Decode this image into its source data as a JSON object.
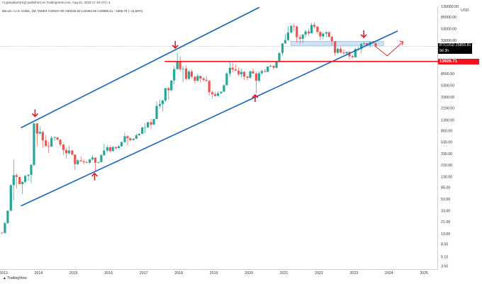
{
  "header": {
    "publisher": "Cryptoadam(HQ) published on TradingView.com, Aug 22, 2023 17:16 UTC-4",
    "symbol_line": "Bitcoin / U.S. Dollar, 1M, INDEX  O29237.80  H30226.50  L25363.66  C25855.81  −3386.76 (−11.58%)"
  },
  "chart_data": {
    "type": "candlestick",
    "title": "Bitcoin / U.S. Dollar, 1M, INDEX",
    "price_scale": "logarithmic",
    "currency": "USD",
    "ylim": [
      3,
      130000
    ],
    "xlim": [
      2012.9,
      2025.4
    ],
    "y_ticks": [
      3.5,
      5.1,
      8.5,
      13.0,
      21.0,
      33.0,
      53.0,
      85.0,
      130.0,
      210.0,
      330.0,
      530.0,
      850.0,
      1300.0,
      2100.0,
      3300.0,
      5300.0,
      8500.0,
      13000.0,
      21000.0,
      33000.0,
      53000.0,
      85000.0,
      130000.0
    ],
    "y_tick_labels": [
      "3.50",
      "5.10",
      "8.50",
      "13.00",
      "21.00",
      "33.00",
      "53.00",
      "85.00",
      "130.00",
      "210.00",
      "330.00",
      "530.00",
      "850.00",
      "1300.00",
      "2100.00",
      "3300.00",
      "5300.00",
      "8500.00",
      "13000.00",
      "21000.00",
      "33000.00",
      "53000.00",
      "85000.00",
      "130000.00"
    ],
    "x_ticks": [
      2013,
      2014,
      2015,
      2016,
      2017,
      2018,
      2019,
      2020,
      2021,
      2022,
      2023,
      2024,
      2025
    ],
    "x_tick_labels": [
      "2013",
      "2014",
      "2015",
      "2016",
      "2017",
      "2018",
      "2019",
      "2020",
      "2021",
      "2022",
      "2023",
      "2024",
      "2025"
    ],
    "last_price": {
      "symbol": "BTCUSD",
      "value": "25855.81",
      "countdown": "9d 3h",
      "y": 25855.81
    },
    "support_line": {
      "label": "13926.71",
      "y": 13926.71,
      "color": "#f0141e"
    },
    "channel_lines": [
      {
        "name": "upper-channel",
        "from": [
          2013.5,
          950
        ],
        "to": [
          2020.3,
          125000
        ]
      },
      {
        "name": "lower-channel",
        "from": [
          2013.5,
          40
        ],
        "to": [
          2024.25,
          48000
        ]
      }
    ],
    "resistance_zone": {
      "x0": 2021.2,
      "x1": 2023.85,
      "y0": 26500,
      "y1": 31500
    },
    "projection_path": [
      [
        2023.6,
        26000
      ],
      [
        2023.95,
        17500
      ],
      [
        2024.4,
        31000
      ]
    ],
    "arrows": [
      {
        "name": "down-arrow-2013",
        "x": 2013.9,
        "y": 1500,
        "dir": "down"
      },
      {
        "name": "up-arrow-2015",
        "x": 2015.6,
        "y": 150,
        "dir": "up"
      },
      {
        "name": "down-arrow-2017",
        "x": 2017.9,
        "y": 24000,
        "dir": "down"
      },
      {
        "name": "up-arrow-2020",
        "x": 2020.18,
        "y": 3600,
        "dir": "up"
      },
      {
        "name": "down-arrow-2023",
        "x": 2023.28,
        "y": 37000,
        "dir": "down"
      }
    ],
    "up_color": "#26a69a",
    "down_color": "#ef5350",
    "candles": [
      {
        "t": 2012.96,
        "o": 13.5,
        "h": 14.0,
        "l": 12.8,
        "c": 13.4
      },
      {
        "t": 2013.04,
        "o": 13.4,
        "h": 21.0,
        "l": 13.0,
        "c": 20.0
      },
      {
        "t": 2013.12,
        "o": 20.0,
        "h": 33.0,
        "l": 19.0,
        "c": 33.0
      },
      {
        "t": 2013.21,
        "o": 33.0,
        "h": 95.0,
        "l": 32.0,
        "c": 93.0
      },
      {
        "t": 2013.29,
        "o": 93.0,
        "h": 260.0,
        "l": 50.0,
        "c": 139.0
      },
      {
        "t": 2013.37,
        "o": 139.0,
        "h": 150.0,
        "l": 80.0,
        "c": 129.0
      },
      {
        "t": 2013.46,
        "o": 129.0,
        "h": 130.0,
        "l": 100.0,
        "c": 97.0
      },
      {
        "t": 2013.54,
        "o": 97.0,
        "h": 110.0,
        "l": 65.0,
        "c": 106.0
      },
      {
        "t": 2013.62,
        "o": 106.0,
        "h": 140.0,
        "l": 100.0,
        "c": 135.0
      },
      {
        "t": 2013.71,
        "o": 135.0,
        "h": 145.0,
        "l": 110.0,
        "c": 141.0
      },
      {
        "t": 2013.79,
        "o": 141.0,
        "h": 220.0,
        "l": 100.0,
        "c": 211.0
      },
      {
        "t": 2013.87,
        "o": 211.0,
        "h": 1160.0,
        "l": 200.0,
        "c": 1130.0
      },
      {
        "t": 2013.96,
        "o": 1130.0,
        "h": 1150.0,
        "l": 450.0,
        "c": 750.0
      },
      {
        "t": 2014.04,
        "o": 750.0,
        "h": 1000.0,
        "l": 740.0,
        "c": 800.0
      },
      {
        "t": 2014.12,
        "o": 800.0,
        "h": 840.0,
        "l": 420.0,
        "c": 570.0
      },
      {
        "t": 2014.21,
        "o": 570.0,
        "h": 700.0,
        "l": 450.0,
        "c": 450.0
      },
      {
        "t": 2014.29,
        "o": 450.0,
        "h": 550.0,
        "l": 340.0,
        "c": 445.0
      },
      {
        "t": 2014.37,
        "o": 445.0,
        "h": 680.0,
        "l": 430.0,
        "c": 630.0
      },
      {
        "t": 2014.46,
        "o": 630.0,
        "h": 680.0,
        "l": 555.0,
        "c": 640.0
      },
      {
        "t": 2014.54,
        "o": 640.0,
        "h": 650.0,
        "l": 580.0,
        "c": 585.0
      },
      {
        "t": 2014.62,
        "o": 585.0,
        "h": 600.0,
        "l": 440.0,
        "c": 480.0
      },
      {
        "t": 2014.71,
        "o": 480.0,
        "h": 500.0,
        "l": 320.0,
        "c": 385.0
      },
      {
        "t": 2014.79,
        "o": 385.0,
        "h": 420.0,
        "l": 275.0,
        "c": 338.0
      },
      {
        "t": 2014.87,
        "o": 338.0,
        "h": 460.0,
        "l": 320.0,
        "c": 378.0
      },
      {
        "t": 2014.96,
        "o": 378.0,
        "h": 385.0,
        "l": 310.0,
        "c": 320.0
      },
      {
        "t": 2015.04,
        "o": 320.0,
        "h": 320.0,
        "l": 170.0,
        "c": 217.0
      },
      {
        "t": 2015.12,
        "o": 217.0,
        "h": 265.0,
        "l": 210.0,
        "c": 254.0
      },
      {
        "t": 2015.21,
        "o": 254.0,
        "h": 300.0,
        "l": 240.0,
        "c": 244.0
      },
      {
        "t": 2015.29,
        "o": 244.0,
        "h": 260.0,
        "l": 215.0,
        "c": 236.0
      },
      {
        "t": 2015.37,
        "o": 236.0,
        "h": 250.0,
        "l": 225.0,
        "c": 230.0
      },
      {
        "t": 2015.46,
        "o": 230.0,
        "h": 270.0,
        "l": 220.0,
        "c": 263.0
      },
      {
        "t": 2015.54,
        "o": 263.0,
        "h": 315.0,
        "l": 253.0,
        "c": 284.0
      },
      {
        "t": 2015.62,
        "o": 284.0,
        "h": 285.0,
        "l": 162.0,
        "c": 230.0
      },
      {
        "t": 2015.71,
        "o": 230.0,
        "h": 245.0,
        "l": 225.0,
        "c": 236.0
      },
      {
        "t": 2015.79,
        "o": 236.0,
        "h": 330.0,
        "l": 236.0,
        "c": 314.0
      },
      {
        "t": 2015.87,
        "o": 314.0,
        "h": 500.0,
        "l": 300.0,
        "c": 377.0
      },
      {
        "t": 2015.96,
        "o": 377.0,
        "h": 470.0,
        "l": 350.0,
        "c": 430.0
      },
      {
        "t": 2016.04,
        "o": 430.0,
        "h": 460.0,
        "l": 350.0,
        "c": 368.0
      },
      {
        "t": 2016.12,
        "o": 368.0,
        "h": 450.0,
        "l": 365.0,
        "c": 437.0
      },
      {
        "t": 2016.21,
        "o": 437.0,
        "h": 440.0,
        "l": 400.0,
        "c": 416.0
      },
      {
        "t": 2016.29,
        "o": 416.0,
        "h": 470.0,
        "l": 410.0,
        "c": 448.0
      },
      {
        "t": 2016.37,
        "o": 448.0,
        "h": 550.0,
        "l": 440.0,
        "c": 531.0
      },
      {
        "t": 2016.46,
        "o": 531.0,
        "h": 780.0,
        "l": 520.0,
        "c": 673.0
      },
      {
        "t": 2016.54,
        "o": 673.0,
        "h": 700.0,
        "l": 470.0,
        "c": 624.0
      },
      {
        "t": 2016.62,
        "o": 624.0,
        "h": 630.0,
        "l": 540.0,
        "c": 575.0
      },
      {
        "t": 2016.71,
        "o": 575.0,
        "h": 620.0,
        "l": 570.0,
        "c": 609.0
      },
      {
        "t": 2016.79,
        "o": 609.0,
        "h": 740.0,
        "l": 605.0,
        "c": 700.0
      },
      {
        "t": 2016.87,
        "o": 700.0,
        "h": 760.0,
        "l": 690.0,
        "c": 742.0
      },
      {
        "t": 2016.96,
        "o": 742.0,
        "h": 980.0,
        "l": 740.0,
        "c": 963.0
      },
      {
        "t": 2017.04,
        "o": 963.0,
        "h": 1150.0,
        "l": 750.0,
        "c": 965.0
      },
      {
        "t": 2017.12,
        "o": 965.0,
        "h": 1200.0,
        "l": 940.0,
        "c": 1190.0
      },
      {
        "t": 2017.21,
        "o": 1190.0,
        "h": 1350.0,
        "l": 900.0,
        "c": 1080.0
      },
      {
        "t": 2017.29,
        "o": 1080.0,
        "h": 1350.0,
        "l": 1060.0,
        "c": 1350.0
      },
      {
        "t": 2017.37,
        "o": 1350.0,
        "h": 2750.0,
        "l": 1340.0,
        "c": 2300.0
      },
      {
        "t": 2017.46,
        "o": 2300.0,
        "h": 3000.0,
        "l": 2100.0,
        "c": 2480.0
      },
      {
        "t": 2017.54,
        "o": 2480.0,
        "h": 2950.0,
        "l": 1830.0,
        "c": 2870.0
      },
      {
        "t": 2017.62,
        "o": 2870.0,
        "h": 4750.0,
        "l": 2670.0,
        "c": 4730.0
      },
      {
        "t": 2017.71,
        "o": 4730.0,
        "h": 4980.0,
        "l": 2950.0,
        "c": 4340.0
      },
      {
        "t": 2017.79,
        "o": 4340.0,
        "h": 6470.0,
        "l": 4110.0,
        "c": 6470.0
      },
      {
        "t": 2017.87,
        "o": 6470.0,
        "h": 11500.0,
        "l": 5500.0,
        "c": 10200.0
      },
      {
        "t": 2017.96,
        "o": 10200.0,
        "h": 19800.0,
        "l": 10000.0,
        "c": 14150.0
      },
      {
        "t": 2018.04,
        "o": 14150.0,
        "h": 17200.0,
        "l": 9400.0,
        "c": 10200.0
      },
      {
        "t": 2018.12,
        "o": 10200.0,
        "h": 11800.0,
        "l": 6000.0,
        "c": 10400.0
      },
      {
        "t": 2018.21,
        "o": 10400.0,
        "h": 11700.0,
        "l": 6500.0,
        "c": 6900.0
      },
      {
        "t": 2018.29,
        "o": 6900.0,
        "h": 9800.0,
        "l": 6500.0,
        "c": 9250.0
      },
      {
        "t": 2018.37,
        "o": 9250.0,
        "h": 9950.0,
        "l": 7050.0,
        "c": 7500.0
      },
      {
        "t": 2018.46,
        "o": 7500.0,
        "h": 7800.0,
        "l": 5750.0,
        "c": 6400.0
      },
      {
        "t": 2018.54,
        "o": 6400.0,
        "h": 8500.0,
        "l": 6100.0,
        "c": 7750.0
      },
      {
        "t": 2018.62,
        "o": 7750.0,
        "h": 7800.0,
        "l": 5900.0,
        "c": 7000.0
      },
      {
        "t": 2018.71,
        "o": 7000.0,
        "h": 7400.0,
        "l": 6200.0,
        "c": 6600.0
      },
      {
        "t": 2018.79,
        "o": 6600.0,
        "h": 7700.0,
        "l": 6200.0,
        "c": 6350.0
      },
      {
        "t": 2018.87,
        "o": 6350.0,
        "h": 6600.0,
        "l": 3500.0,
        "c": 4000.0
      },
      {
        "t": 2018.96,
        "o": 4000.0,
        "h": 4300.0,
        "l": 3150.0,
        "c": 3700.0
      },
      {
        "t": 2019.04,
        "o": 3700.0,
        "h": 4100.0,
        "l": 3350.0,
        "c": 3450.0
      },
      {
        "t": 2019.12,
        "o": 3450.0,
        "h": 4200.0,
        "l": 3350.0,
        "c": 3850.0
      },
      {
        "t": 2019.21,
        "o": 3850.0,
        "h": 4100.0,
        "l": 3700.0,
        "c": 4100.0
      },
      {
        "t": 2019.29,
        "o": 4100.0,
        "h": 5600.0,
        "l": 4050.0,
        "c": 5300.0
      },
      {
        "t": 2019.37,
        "o": 5300.0,
        "h": 9100.0,
        "l": 5300.0,
        "c": 8550.0
      },
      {
        "t": 2019.46,
        "o": 8550.0,
        "h": 13900.0,
        "l": 7450.0,
        "c": 10800.0
      },
      {
        "t": 2019.54,
        "o": 10800.0,
        "h": 13200.0,
        "l": 9050.0,
        "c": 10100.0
      },
      {
        "t": 2019.62,
        "o": 10100.0,
        "h": 12300.0,
        "l": 9400.0,
        "c": 9600.0
      },
      {
        "t": 2019.71,
        "o": 9600.0,
        "h": 10900.0,
        "l": 7700.0,
        "c": 8300.0
      },
      {
        "t": 2019.79,
        "o": 8300.0,
        "h": 10400.0,
        "l": 7300.0,
        "c": 9150.0
      },
      {
        "t": 2019.87,
        "o": 9150.0,
        "h": 9350.0,
        "l": 6550.0,
        "c": 7550.0
      },
      {
        "t": 2019.96,
        "o": 7550.0,
        "h": 7750.0,
        "l": 6450.0,
        "c": 7200.0
      },
      {
        "t": 2020.04,
        "o": 7200.0,
        "h": 9600.0,
        "l": 6900.0,
        "c": 9350.0
      },
      {
        "t": 2020.12,
        "o": 9350.0,
        "h": 10500.0,
        "l": 8500.0,
        "c": 8550.0
      },
      {
        "t": 2020.21,
        "o": 8550.0,
        "h": 9200.0,
        "l": 3850.0,
        "c": 6400.0
      },
      {
        "t": 2020.29,
        "o": 6400.0,
        "h": 9450.0,
        "l": 6150.0,
        "c": 8650.0
      },
      {
        "t": 2020.37,
        "o": 8650.0,
        "h": 10050.0,
        "l": 8150.0,
        "c": 9450.0
      },
      {
        "t": 2020.46,
        "o": 9450.0,
        "h": 10400.0,
        "l": 8900.0,
        "c": 9150.0
      },
      {
        "t": 2020.54,
        "o": 9150.0,
        "h": 11450.0,
        "l": 9050.0,
        "c": 11350.0
      },
      {
        "t": 2020.62,
        "o": 11350.0,
        "h": 12500.0,
        "l": 11100.0,
        "c": 11650.0
      },
      {
        "t": 2020.71,
        "o": 11650.0,
        "h": 12050.0,
        "l": 9900.0,
        "c": 10800.0
      },
      {
        "t": 2020.79,
        "o": 10800.0,
        "h": 14000.0,
        "l": 10400.0,
        "c": 13800.0
      },
      {
        "t": 2020.87,
        "o": 13800.0,
        "h": 19900.0,
        "l": 13200.0,
        "c": 19700.0
      },
      {
        "t": 2020.96,
        "o": 19700.0,
        "h": 29300.0,
        "l": 17600.0,
        "c": 29000.0
      },
      {
        "t": 2021.04,
        "o": 29000.0,
        "h": 41900.0,
        "l": 28800.0,
        "c": 33100.0
      },
      {
        "t": 2021.12,
        "o": 33100.0,
        "h": 58300.0,
        "l": 32300.0,
        "c": 45200.0
      },
      {
        "t": 2021.21,
        "o": 45200.0,
        "h": 61800.0,
        "l": 43000.0,
        "c": 58800.0
      },
      {
        "t": 2021.29,
        "o": 58800.0,
        "h": 64800.0,
        "l": 47000.0,
        "c": 57700.0
      },
      {
        "t": 2021.37,
        "o": 57700.0,
        "h": 59500.0,
        "l": 30000.0,
        "c": 37300.0
      },
      {
        "t": 2021.46,
        "o": 37300.0,
        "h": 41300.0,
        "l": 28800.0,
        "c": 35000.0
      },
      {
        "t": 2021.54,
        "o": 35000.0,
        "h": 42400.0,
        "l": 29300.0,
        "c": 41500.0
      },
      {
        "t": 2021.62,
        "o": 41500.0,
        "h": 50500.0,
        "l": 37300.0,
        "c": 47100.0
      },
      {
        "t": 2021.71,
        "o": 47100.0,
        "h": 52900.0,
        "l": 39600.0,
        "c": 43800.0
      },
      {
        "t": 2021.79,
        "o": 43800.0,
        "h": 67000.0,
        "l": 43300.0,
        "c": 61300.0
      },
      {
        "t": 2021.87,
        "o": 61300.0,
        "h": 69000.0,
        "l": 53300.0,
        "c": 57000.0
      },
      {
        "t": 2021.96,
        "o": 57000.0,
        "h": 59100.0,
        "l": 42000.0,
        "c": 46200.0
      },
      {
        "t": 2022.04,
        "o": 46200.0,
        "h": 47900.0,
        "l": 32900.0,
        "c": 38500.0
      },
      {
        "t": 2022.12,
        "o": 38500.0,
        "h": 45800.0,
        "l": 34300.0,
        "c": 43200.0
      },
      {
        "t": 2022.21,
        "o": 43200.0,
        "h": 48200.0,
        "l": 37200.0,
        "c": 45500.0
      },
      {
        "t": 2022.29,
        "o": 45500.0,
        "h": 47400.0,
        "l": 37600.0,
        "c": 37700.0
      },
      {
        "t": 2022.37,
        "o": 37700.0,
        "h": 40000.0,
        "l": 26700.0,
        "c": 31800.0
      },
      {
        "t": 2022.46,
        "o": 31800.0,
        "h": 31900.0,
        "l": 17600.0,
        "c": 19800.0
      },
      {
        "t": 2022.54,
        "o": 19800.0,
        "h": 24600.0,
        "l": 18800.0,
        "c": 23300.0
      },
      {
        "t": 2022.62,
        "o": 23300.0,
        "h": 25200.0,
        "l": 19600.0,
        "c": 20000.0
      },
      {
        "t": 2022.71,
        "o": 20000.0,
        "h": 22800.0,
        "l": 18200.0,
        "c": 19400.0
      },
      {
        "t": 2022.79,
        "o": 19400.0,
        "h": 21000.0,
        "l": 18200.0,
        "c": 20500.0
      },
      {
        "t": 2022.87,
        "o": 20500.0,
        "h": 21400.0,
        "l": 15500.0,
        "c": 17200.0
      },
      {
        "t": 2022.96,
        "o": 17200.0,
        "h": 18400.0,
        "l": 16300.0,
        "c": 16500.0
      },
      {
        "t": 2023.04,
        "o": 16500.0,
        "h": 23900.0,
        "l": 16500.0,
        "c": 23100.0
      },
      {
        "t": 2023.12,
        "o": 23100.0,
        "h": 25200.0,
        "l": 21400.0,
        "c": 23100.0
      },
      {
        "t": 2023.21,
        "o": 23100.0,
        "h": 29200.0,
        "l": 19600.0,
        "c": 28500.0
      },
      {
        "t": 2023.29,
        "o": 28500.0,
        "h": 31000.0,
        "l": 26900.0,
        "c": 29200.0
      },
      {
        "t": 2023.37,
        "o": 29200.0,
        "h": 29800.0,
        "l": 25800.0,
        "c": 27200.0
      },
      {
        "t": 2023.46,
        "o": 27200.0,
        "h": 31400.0,
        "l": 24800.0,
        "c": 30500.0
      },
      {
        "t": 2023.54,
        "o": 30500.0,
        "h": 31800.0,
        "l": 28900.0,
        "c": 29200.0
      },
      {
        "t": 2023.62,
        "o": 29237.8,
        "h": 30226.5,
        "l": 25363.66,
        "c": 25855.81
      }
    ]
  },
  "footer": {
    "brand": "TradingView"
  },
  "colors": {
    "channel": "#1565c0",
    "arrow": "#e8161e",
    "zone": "#a9c8e8"
  }
}
